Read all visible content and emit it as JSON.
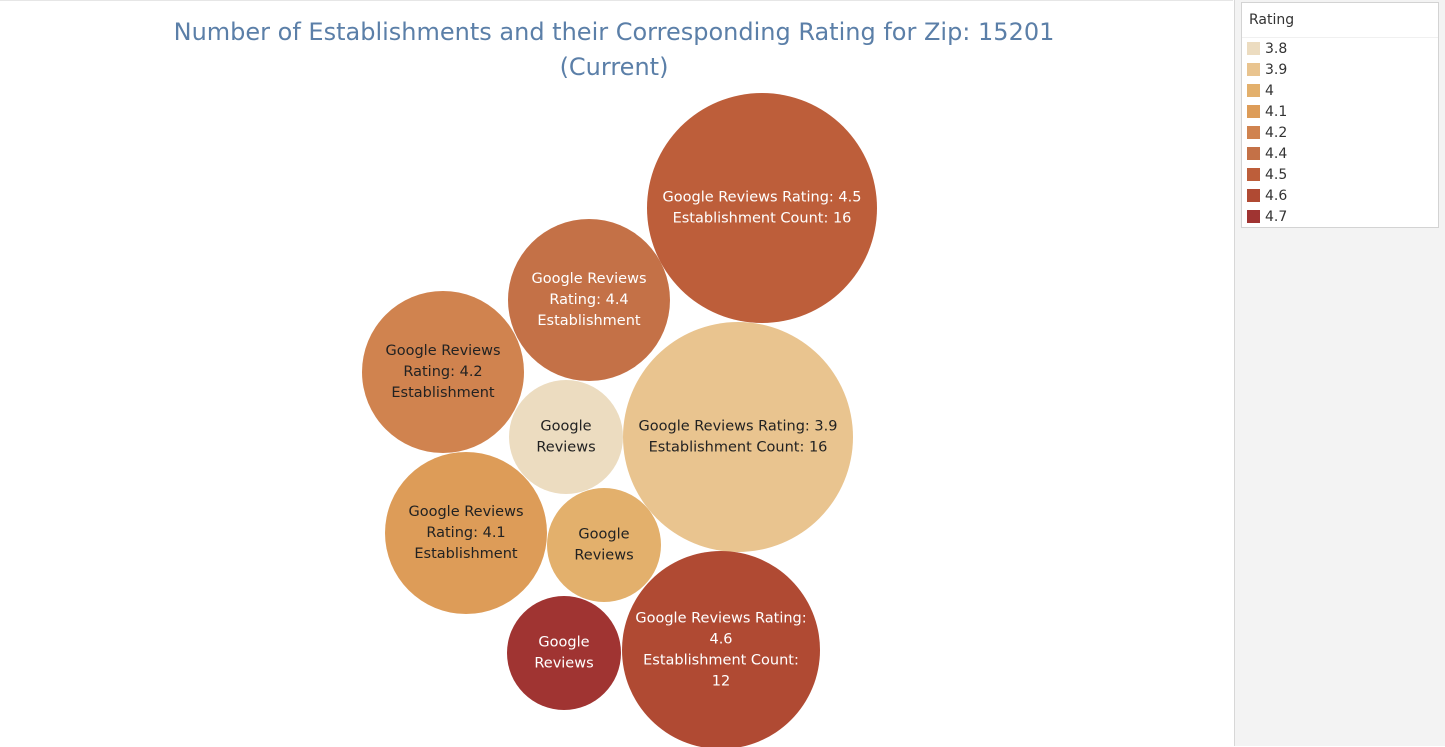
{
  "chart_data": {
    "type": "bubble",
    "title_lines": [
      "Number of Establishments and their Corresponding Rating for Zip: 15201",
      "(Current)"
    ],
    "legend": {
      "title": "Rating",
      "items": [
        {
          "label": "3.8",
          "color": "#ecdcc0"
        },
        {
          "label": "3.9",
          "color": "#e9c48f"
        },
        {
          "label": "4",
          "color": "#e3b06c"
        },
        {
          "label": "4.1",
          "color": "#dd9c58"
        },
        {
          "label": "4.2",
          "color": "#d0834f"
        },
        {
          "label": "4.4",
          "color": "#c47147"
        },
        {
          "label": "4.5",
          "color": "#bd5e3a"
        },
        {
          "label": "4.6",
          "color": "#b04a33"
        },
        {
          "label": "4.7",
          "color": "#a03432"
        }
      ]
    },
    "bubbles": [
      {
        "rating": 4.5,
        "count": 16,
        "color": "#bd5e3a",
        "text_color": "#ffffff",
        "label_lines": [
          "Google Reviews Rating: 4.5",
          "Establishment Count: 16"
        ]
      },
      {
        "rating": 4.4,
        "color": "#c47147",
        "text_color": "#ffffff",
        "label_lines": [
          "Google Reviews",
          "Rating: 4.4",
          "Establishment"
        ]
      },
      {
        "rating": 4.2,
        "color": "#d0834f",
        "text_color": "#222222",
        "label_lines": [
          "Google Reviews",
          "Rating: 4.2",
          "Establishment"
        ]
      },
      {
        "rating": 3.8,
        "color": "#ecdcc0",
        "text_color": "#222222",
        "label_lines": [
          "Google",
          "Reviews"
        ]
      },
      {
        "rating": 3.9,
        "count": 16,
        "color": "#e9c48f",
        "text_color": "#222222",
        "label_lines": [
          "Google Reviews Rating: 3.9",
          "Establishment Count: 16"
        ]
      },
      {
        "rating": 4.1,
        "color": "#dd9c58",
        "text_color": "#222222",
        "label_lines": [
          "Google Reviews",
          "Rating: 4.1",
          "Establishment"
        ]
      },
      {
        "rating": 4.0,
        "color": "#e3b06c",
        "text_color": "#222222",
        "label_lines": [
          "Google",
          "Reviews"
        ]
      },
      {
        "rating": 4.7,
        "color": "#a03432",
        "text_color": "#ffffff",
        "label_lines": [
          "Google",
          "Reviews"
        ]
      },
      {
        "rating": 4.6,
        "count": 12,
        "color": "#b04a33",
        "text_color": "#ffffff",
        "label_lines": [
          "Google Reviews Rating:",
          "4.6",
          "Establishment Count:",
          "12"
        ]
      }
    ]
  }
}
